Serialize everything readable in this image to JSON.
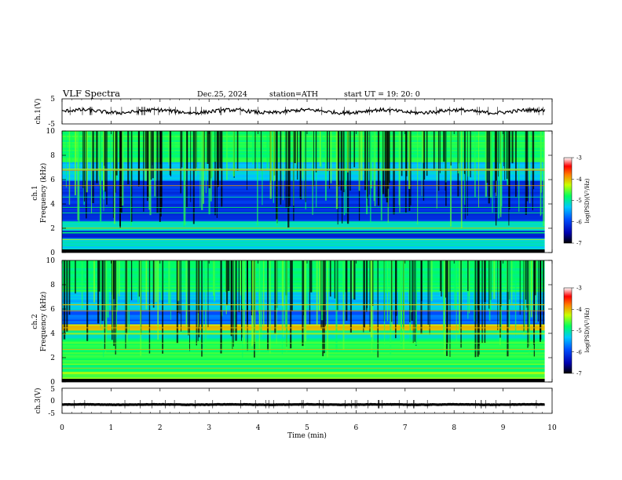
{
  "header": {
    "title": "VLF  Spectra",
    "date": "Dec.25, 2024",
    "station": "station=ATH",
    "start": "start  UT  =    19: 20: 0"
  },
  "chart_data": [
    {
      "type": "line",
      "panel": "ch1-waveform",
      "ylabel": "ch.1(V)",
      "ylim": [
        -5,
        5
      ],
      "yticks": [
        "5",
        "-5"
      ],
      "x_range_min": [
        0,
        9.85
      ],
      "approx_level_v": 0,
      "line_color": "#000000"
    },
    {
      "type": "heatmap",
      "panel": "ch1-spectrogram",
      "ylabel": "ch.1\nFrequency  (kHz)",
      "ylim": [
        0,
        10
      ],
      "yticks": [
        "0",
        "2",
        "4",
        "6",
        "8",
        "10"
      ],
      "x_range_min": [
        0,
        9.85
      ],
      "colorbar": {
        "label": "log(PSD)(V²/Hz)",
        "range": [
          -7,
          -3
        ],
        "ticks": [
          "-3",
          "-4",
          "-5",
          "-6",
          "-7"
        ]
      }
    },
    {
      "type": "heatmap",
      "panel": "ch2-spectrogram",
      "ylabel": "ch.2\nFrequency  (kHz)",
      "ylim": [
        0,
        10
      ],
      "yticks": [
        "0",
        "2",
        "4",
        "6",
        "8",
        "10"
      ],
      "x_range_min": [
        0,
        9.85
      ],
      "colorbar": {
        "label": "log(PSD)(V²/Hz)",
        "range": [
          -7,
          -3
        ],
        "ticks": [
          "-3",
          "-4",
          "-5",
          "-6",
          "-7"
        ]
      }
    },
    {
      "type": "line",
      "panel": "ch3-waveform",
      "ylabel": "ch.3(V)",
      "ylim": [
        -5,
        5
      ],
      "yticks": [
        "5",
        "0",
        "-5"
      ],
      "x_range_min": [
        0,
        9.85
      ],
      "approx_level_v": -1.5,
      "line_color": "#000000"
    }
  ],
  "xaxis": {
    "label": "Time  (min)",
    "range": [
      0,
      10
    ],
    "ticks": [
      "0",
      "1",
      "2",
      "3",
      "4",
      "5",
      "6",
      "7",
      "8",
      "9",
      "10"
    ]
  }
}
